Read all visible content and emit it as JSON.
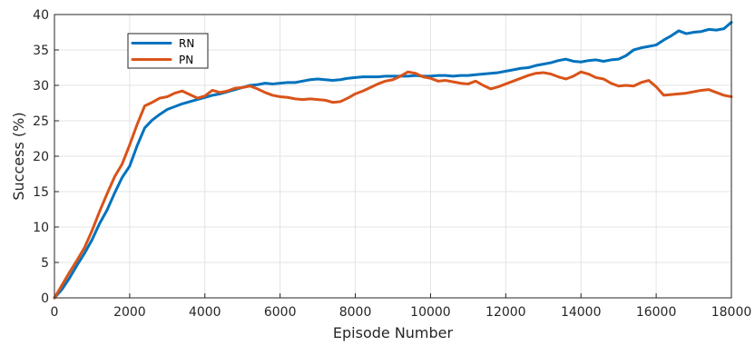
{
  "chart_data": {
    "type": "line",
    "title": "",
    "xlabel": "Episode Number",
    "ylabel": "Success (%)",
    "xlim": [
      0,
      18000
    ],
    "ylim": [
      0,
      40
    ],
    "xticks": [
      0,
      2000,
      4000,
      6000,
      8000,
      10000,
      12000,
      14000,
      16000,
      18000
    ],
    "yticks": [
      0,
      5,
      10,
      15,
      20,
      25,
      30,
      35,
      40
    ],
    "grid": true,
    "legend_position": "top-left",
    "series": [
      {
        "name": "RN",
        "color": "#0072BD",
        "x": [
          0,
          200,
          400,
          600,
          800,
          1000,
          1200,
          1400,
          1600,
          1800,
          2000,
          2200,
          2400,
          2600,
          2800,
          3000,
          3200,
          3400,
          3600,
          3800,
          4000,
          4200,
          4400,
          4600,
          4800,
          5000,
          5200,
          5400,
          5600,
          5800,
          6000,
          6200,
          6400,
          6600,
          6800,
          7000,
          7200,
          7400,
          7600,
          7800,
          8000,
          8200,
          8400,
          8600,
          8800,
          9000,
          9200,
          9400,
          9600,
          9800,
          10000,
          10200,
          10400,
          10600,
          10800,
          11000,
          11200,
          11400,
          11600,
          11800,
          12000,
          12200,
          12400,
          12600,
          12800,
          13000,
          13200,
          13400,
          13600,
          13800,
          14000,
          14200,
          14400,
          14600,
          14800,
          15000,
          15200,
          15400,
          15600,
          15800,
          16000,
          16200,
          16400,
          16600,
          16800,
          17000,
          17200,
          17400,
          17600,
          17800,
          18000
        ],
        "values": [
          0,
          1.2,
          2.8,
          4.6,
          6.3,
          8.2,
          10.5,
          12.4,
          14.8,
          17.0,
          18.6,
          21.5,
          24.0,
          25.1,
          25.9,
          26.6,
          27.0,
          27.4,
          27.7,
          28.0,
          28.3,
          28.6,
          28.8,
          29.1,
          29.4,
          29.7,
          30.0,
          30.1,
          30.3,
          30.2,
          30.3,
          30.4,
          30.4,
          30.6,
          30.8,
          30.9,
          30.8,
          30.7,
          30.8,
          31.0,
          31.1,
          31.2,
          31.2,
          31.2,
          31.3,
          31.3,
          31.3,
          31.3,
          31.4,
          31.3,
          31.3,
          31.4,
          31.4,
          31.3,
          31.4,
          31.4,
          31.5,
          31.6,
          31.7,
          31.8,
          32.0,
          32.2,
          32.4,
          32.5,
          32.8,
          33.0,
          33.2,
          33.5,
          33.7,
          33.4,
          33.3,
          33.5,
          33.6,
          33.4,
          33.6,
          33.7,
          34.2,
          35.0,
          35.3,
          35.5,
          35.7,
          36.4,
          37.0,
          37.7,
          37.3,
          37.5,
          37.6,
          37.9,
          37.8,
          38.0,
          38.9
        ]
      },
      {
        "name": "PN",
        "color": "#D95319",
        "x": [
          0,
          200,
          400,
          600,
          800,
          1000,
          1200,
          1400,
          1600,
          1800,
          2000,
          2200,
          2400,
          2600,
          2800,
          3000,
          3200,
          3400,
          3600,
          3800,
          4000,
          4200,
          4400,
          4600,
          4800,
          5000,
          5200,
          5400,
          5600,
          5800,
          6000,
          6200,
          6400,
          6600,
          6800,
          7000,
          7200,
          7400,
          7600,
          7800,
          8000,
          8200,
          8400,
          8600,
          8800,
          9000,
          9200,
          9400,
          9600,
          9800,
          10000,
          10200,
          10400,
          10600,
          10800,
          11000,
          11200,
          11400,
          11600,
          11800,
          12000,
          12200,
          12400,
          12600,
          12800,
          13000,
          13200,
          13400,
          13600,
          13800,
          14000,
          14200,
          14400,
          14600,
          14800,
          15000,
          15200,
          15400,
          15600,
          15800,
          16000,
          16200,
          16400,
          16600,
          16800,
          17000,
          17200,
          17400,
          17600,
          17800,
          18000
        ],
        "values": [
          0,
          1.8,
          3.6,
          5.3,
          7.1,
          9.5,
          12.2,
          14.7,
          17.1,
          18.9,
          21.6,
          24.5,
          27.1,
          27.6,
          28.2,
          28.4,
          28.9,
          29.2,
          28.7,
          28.2,
          28.5,
          29.3,
          29.0,
          29.2,
          29.6,
          29.7,
          29.9,
          29.5,
          29.0,
          28.6,
          28.4,
          28.3,
          28.1,
          28.0,
          28.1,
          28.0,
          27.9,
          27.6,
          27.7,
          28.2,
          28.8,
          29.2,
          29.7,
          30.2,
          30.6,
          30.8,
          31.3,
          31.9,
          31.7,
          31.2,
          31.0,
          30.6,
          30.7,
          30.5,
          30.3,
          30.2,
          30.6,
          30.0,
          29.5,
          29.8,
          30.2,
          30.6,
          31.0,
          31.4,
          31.7,
          31.8,
          31.6,
          31.2,
          30.9,
          31.3,
          31.9,
          31.6,
          31.1,
          30.9,
          30.3,
          29.9,
          30.0,
          29.9,
          30.4,
          30.7,
          29.8,
          28.6,
          28.7,
          28.8,
          28.9,
          29.1,
          29.3,
          29.4,
          29.0,
          28.6,
          28.4
        ]
      }
    ]
  }
}
